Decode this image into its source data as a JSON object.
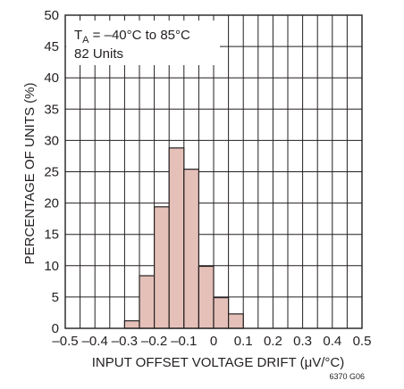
{
  "chart_data": {
    "type": "bar",
    "xlabel": "INPUT OFFSET VOLTAGE DRIFT (μV/°C)",
    "ylabel": "PERCENTAGE OF UNITS (%)",
    "xlim": [
      -0.5,
      0.5
    ],
    "ylim": [
      0,
      50
    ],
    "x_ticks": [
      -0.5,
      -0.4,
      -0.3,
      -0.2,
      -0.1,
      0,
      0.1,
      0.2,
      0.3,
      0.4,
      0.5
    ],
    "x_tick_labels": [
      "–0.5",
      "–0.4",
      "–0.3",
      "–0.2",
      "–0.1",
      "0",
      "0.1",
      "0.2",
      "0.3",
      "0.4",
      "0.5"
    ],
    "y_ticks": [
      0,
      5,
      10,
      15,
      20,
      25,
      30,
      35,
      40,
      45,
      50
    ],
    "y_tick_labels": [
      "0",
      "5",
      "10",
      "15",
      "20",
      "25",
      "30",
      "35",
      "40",
      "45",
      "50"
    ],
    "grid": true,
    "bin_width": 0.05,
    "bins": [
      {
        "start": -0.3,
        "end": -0.25,
        "value": 1.2
      },
      {
        "start": -0.25,
        "end": -0.2,
        "value": 8.4
      },
      {
        "start": -0.2,
        "end": -0.15,
        "value": 19.4
      },
      {
        "start": -0.15,
        "end": -0.1,
        "value": 28.8
      },
      {
        "start": -0.1,
        "end": -0.05,
        "value": 25.4
      },
      {
        "start": -0.05,
        "end": 0.0,
        "value": 9.9
      },
      {
        "start": 0.0,
        "end": 0.05,
        "value": 4.9
      },
      {
        "start": 0.05,
        "end": 0.1,
        "value": 2.3
      }
    ],
    "annotation": {
      "line1_prefix": "T",
      "line1_subscript": "A",
      "line1_suffix": " = –40°C to 85°C",
      "line2": "82 Units"
    },
    "figure_code": "6370 G06",
    "colors": {
      "bar_fill": "#e5c0b8",
      "bar_stroke": "#231f20",
      "grid": "#231f20",
      "text": "#231f20"
    }
  }
}
